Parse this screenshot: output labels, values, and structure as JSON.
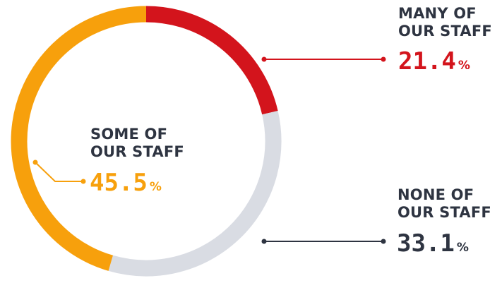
{
  "chart_data": {
    "type": "pie",
    "style": "donut",
    "series": [
      {
        "label_lines": [
          "MANY OF",
          "OUR STAFF"
        ],
        "value": 21.4,
        "display": "21.4",
        "unit": "%",
        "color": "#d3141c"
      },
      {
        "label_lines": [
          "NONE OF",
          "OUR STAFF"
        ],
        "value": 33.1,
        "display": "33.1",
        "unit": "%",
        "color": "#d9dce3"
      },
      {
        "label_lines": [
          "SOME OF",
          "OUR STAFF"
        ],
        "value": 45.5,
        "display": "45.5",
        "unit": "%",
        "color": "#f7a00c"
      }
    ],
    "label_colors": {
      "heading": "#2e3441",
      "many_value": "#d3141c",
      "none_value": "#2e3441",
      "some_value": "#f7a00c",
      "none_leader": "#2e3441"
    }
  }
}
